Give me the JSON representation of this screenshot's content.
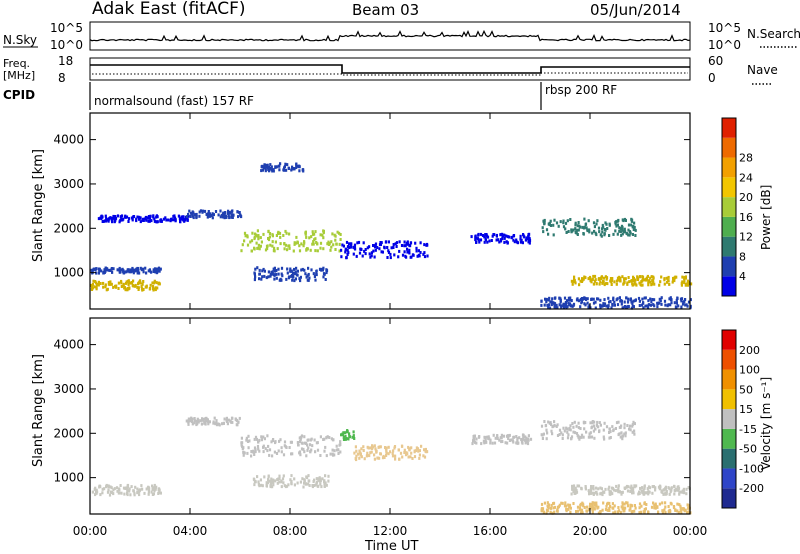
{
  "header": {
    "station": "Adak East (fitACF)",
    "beam": "Beam 03",
    "date": "05/Jun/2014"
  },
  "top_panels": {
    "nsky_label": "N.Sky",
    "nsearch_label": "N.Search",
    "freq_label_line1": "Freq.",
    "freq_label_line2": "[MHz]",
    "nave_label": "Nave",
    "cpid_label": "CPID",
    "log_ticks": [
      "10^5",
      "10^0"
    ],
    "freq_ticks": [
      "18",
      "8"
    ],
    "nave_ticks": [
      "60",
      "0"
    ],
    "cpid_segments": [
      "normalsound (fast) 157 RF",
      "rbsp 200 RF"
    ]
  },
  "chart_data": [
    {
      "type": "heatmap",
      "title": "",
      "xlabel": "",
      "ylabel": "Slant Range [km]",
      "ylim": [
        180,
        4600
      ],
      "xlim": [
        0,
        24
      ],
      "x_ticks": [
        0,
        4,
        8,
        12,
        16,
        20,
        24
      ],
      "y_ticks": [
        1000,
        2000,
        3000,
        4000
      ],
      "colorbar": {
        "label": "Power [dB]",
        "range": [
          0,
          32
        ],
        "ticks": [
          "4",
          "8",
          "12",
          "16",
          "20",
          "24",
          "28"
        ],
        "colors": [
          "#0000e6",
          "#1f3fb0",
          "#2f7a70",
          "#4fae4f",
          "#a8cc38",
          "#f2c600",
          "#f2a000",
          "#ee6a00",
          "#e02000"
        ]
      },
      "features": [
        {
          "t0": 0.0,
          "t1": 2.8,
          "r_center": 750,
          "r_half": 110,
          "color": "#d0b000"
        },
        {
          "t0": 0.0,
          "t1": 2.8,
          "r_center": 1080,
          "r_half": 60,
          "color": "#1f3fb0"
        },
        {
          "t0": 0.3,
          "t1": 4.0,
          "r_center": 2250,
          "r_half": 70,
          "color": "#0000e6"
        },
        {
          "t0": 3.8,
          "t1": 6.0,
          "r_center": 2350,
          "r_half": 80,
          "color": "#1f3fb0"
        },
        {
          "t0": 6.0,
          "t1": 10.0,
          "r_center": 1750,
          "r_half": 230,
          "color": "#a8cc38"
        },
        {
          "t0": 6.5,
          "t1": 9.5,
          "r_center": 1000,
          "r_half": 150,
          "color": "#1f3fb0"
        },
        {
          "t0": 6.8,
          "t1": 8.5,
          "r_center": 3400,
          "r_half": 90,
          "color": "#1f3fb0"
        },
        {
          "t0": 10.0,
          "t1": 13.5,
          "r_center": 1550,
          "r_half": 180,
          "color": "#0000e6"
        },
        {
          "t0": 15.2,
          "t1": 17.6,
          "r_center": 1800,
          "r_half": 100,
          "color": "#0000e6"
        },
        {
          "t0": 18.0,
          "t1": 21.8,
          "r_center": 2050,
          "r_half": 200,
          "color": "#2f7a70"
        },
        {
          "t0": 19.2,
          "t1": 24.0,
          "r_center": 850,
          "r_half": 100,
          "color": "#d0b000"
        },
        {
          "t0": 18.0,
          "t1": 24.0,
          "r_center": 350,
          "r_half": 120,
          "color": "#1f3fb0"
        }
      ]
    },
    {
      "type": "heatmap",
      "title": "",
      "xlabel": "Time UT",
      "ylabel": "Slant Range [km]",
      "ylim": [
        180,
        4600
      ],
      "xlim": [
        0,
        24
      ],
      "x_ticks": [
        0,
        4,
        8,
        12,
        16,
        20,
        24
      ],
      "x_tick_labels": [
        "00:00",
        "04:00",
        "08:00",
        "12:00",
        "16:00",
        "20:00",
        "00:00"
      ],
      "y_ticks": [
        1000,
        2000,
        3000,
        4000
      ],
      "colorbar": {
        "label": "Velocity [m s⁻¹]",
        "ticks": [
          "200",
          "100",
          "50",
          "15",
          "-15",
          "-50",
          "-100",
          "-200"
        ],
        "colors": [
          "#1f2a90",
          "#2f45c8",
          "#2a6f70",
          "#4fb84f",
          "#c0c0c0",
          "#f0c000",
          "#f09000",
          "#ee5000",
          "#e00000"
        ]
      },
      "features": [
        {
          "t0": 0.0,
          "t1": 2.8,
          "r_center": 750,
          "r_half": 110,
          "color": "#c8c8c0"
        },
        {
          "t0": 3.8,
          "t1": 6.0,
          "r_center": 2300,
          "r_half": 80,
          "color": "#c0c0c0"
        },
        {
          "t0": 6.0,
          "t1": 10.0,
          "r_center": 1750,
          "r_half": 230,
          "color": "#c0c0c0"
        },
        {
          "t0": 6.5,
          "t1": 9.5,
          "r_center": 950,
          "r_half": 130,
          "color": "#c8c8c0"
        },
        {
          "t0": 10.0,
          "t1": 10.6,
          "r_center": 2000,
          "r_half": 110,
          "color": "#4fb84f"
        },
        {
          "t0": 10.5,
          "t1": 13.5,
          "r_center": 1600,
          "r_half": 160,
          "color": "#e8c890"
        },
        {
          "t0": 15.2,
          "t1": 17.6,
          "r_center": 1900,
          "r_half": 100,
          "color": "#c0c0c0"
        },
        {
          "t0": 18.0,
          "t1": 21.8,
          "r_center": 2100,
          "r_half": 200,
          "color": "#c0c0c0"
        },
        {
          "t0": 19.2,
          "t1": 24.0,
          "r_center": 750,
          "r_half": 100,
          "color": "#c8c8c0"
        },
        {
          "t0": 18.0,
          "t1": 24.0,
          "r_center": 350,
          "r_half": 120,
          "color": "#e8c070"
        }
      ]
    }
  ]
}
